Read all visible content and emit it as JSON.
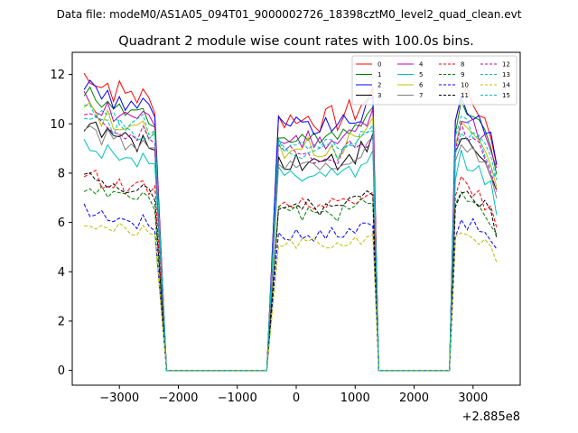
{
  "chart_data": {
    "type": "line",
    "suptitle": "Data file: modeM0/AS1A05_094T01_9000002726_18398cztM0_level2_quad_clean.evt",
    "title": "Quadrant 2 module wise count rates with 100.0s bins.",
    "xlabel": "",
    "ylabel": "",
    "x_offset_label": "+2.885e8",
    "xlim": [
      -3800,
      3800
    ],
    "ylim": [
      -0.6,
      12.9
    ],
    "xticks": [
      -3000,
      -2000,
      -1000,
      0,
      1000,
      2000,
      3000
    ],
    "xtick_labels": [
      "−3000",
      "−2000",
      "−1000",
      "0",
      "1000",
      "2000",
      "3000"
    ],
    "yticks": [
      0,
      2,
      4,
      6,
      8,
      10,
      12
    ],
    "ytick_labels": [
      "0",
      "2",
      "4",
      "6",
      "8",
      "10",
      "12"
    ],
    "legend_position": "top-right",
    "legend_columns": 4,
    "segments": [
      {
        "x_start": -3600,
        "x_end": -2400,
        "values": [
          1.0,
          1.0,
          0.98,
          0.96,
          0.97,
          0.94,
          0.95,
          0.93,
          0.95,
          0.92,
          0.93,
          0.91,
          0.9
        ]
      },
      {
        "x_start": -300,
        "x_end": 1300,
        "values": [
          0.86,
          0.84,
          0.85,
          0.86,
          0.84,
          0.86,
          0.85,
          0.84,
          0.85,
          0.86,
          0.84,
          0.86,
          0.88,
          0.87,
          0.9,
          0.91,
          0.94
        ]
      },
      {
        "x_start": 2700,
        "x_end": 3400,
        "values": [
          0.86,
          0.95,
          0.92,
          0.9,
          0.88,
          0.85,
          0.8,
          0.72
        ]
      }
    ],
    "gaps": [
      {
        "drop_to": 0,
        "x_zero_start": -2200,
        "x_zero_end": -500
      },
      {
        "drop_to": 0,
        "x_zero_start": 1400,
        "x_zero_end": 2600
      }
    ],
    "series": [
      {
        "name": "0",
        "color": "#ff0000",
        "dash": "solid",
        "level": 12.0,
        "jitter": 0.45
      },
      {
        "name": "1",
        "color": "#008000",
        "dash": "solid",
        "level": 11.2,
        "jitter": 0.35
      },
      {
        "name": "2",
        "color": "#0000ff",
        "dash": "solid",
        "level": 11.6,
        "jitter": 0.4
      },
      {
        "name": "3",
        "color": "#000000",
        "dash": "solid",
        "level": 10.0,
        "jitter": 0.35
      },
      {
        "name": "4",
        "color": "#bf00bf",
        "dash": "solid",
        "level": 11.0,
        "jitter": 0.4
      },
      {
        "name": "5",
        "color": "#00bfbf",
        "dash": "solid",
        "level": 9.2,
        "jitter": 0.35
      },
      {
        "name": "6",
        "color": "#bfbf00",
        "dash": "solid",
        "level": 10.6,
        "jitter": 0.35
      },
      {
        "name": "7",
        "color": "#808080",
        "dash": "solid",
        "level": 9.8,
        "jitter": 0.3
      },
      {
        "name": "8",
        "color": "#ff0000",
        "dash": "dashed",
        "level": 8.0,
        "jitter": 0.3
      },
      {
        "name": "9",
        "color": "#008000",
        "dash": "dashed",
        "level": 7.5,
        "jitter": 0.3
      },
      {
        "name": "10",
        "color": "#0000ff",
        "dash": "dashed",
        "level": 6.5,
        "jitter": 0.3
      },
      {
        "name": "11",
        "color": "#000000",
        "dash": "dashed",
        "level": 7.8,
        "jitter": 0.3
      },
      {
        "name": "12",
        "color": "#bf00bf",
        "dash": "dashed",
        "level": 10.3,
        "jitter": 0.35
      },
      {
        "name": "13",
        "color": "#00bfbf",
        "dash": "dashed",
        "level": 10.8,
        "jitter": 0.35
      },
      {
        "name": "14",
        "color": "#bfbf00",
        "dash": "dashed",
        "level": 6.0,
        "jitter": 0.3
      },
      {
        "name": "15",
        "color": "#00bfbf",
        "dash": "dashed",
        "level": 10.5,
        "jitter": 0.35
      }
    ]
  }
}
